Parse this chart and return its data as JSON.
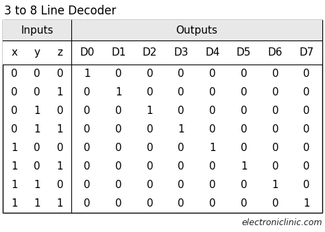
{
  "title": "3 to 8 Line Decoder",
  "header1_inputs": "Inputs",
  "header1_outputs": "Outputs",
  "col_headers": [
    "x",
    "y",
    "z",
    "D0",
    "D1",
    "D2",
    "D3",
    "D4",
    "D5",
    "D6",
    "D7"
  ],
  "rows": [
    [
      0,
      0,
      0,
      1,
      0,
      0,
      0,
      0,
      0,
      0,
      0
    ],
    [
      0,
      0,
      1,
      0,
      1,
      0,
      0,
      0,
      0,
      0,
      0
    ],
    [
      0,
      1,
      0,
      0,
      0,
      1,
      0,
      0,
      0,
      0,
      0
    ],
    [
      0,
      1,
      1,
      0,
      0,
      0,
      1,
      0,
      0,
      0,
      0
    ],
    [
      1,
      0,
      0,
      0,
      0,
      0,
      0,
      1,
      0,
      0,
      0
    ],
    [
      1,
      0,
      1,
      0,
      0,
      0,
      0,
      0,
      1,
      0,
      0
    ],
    [
      1,
      1,
      0,
      0,
      0,
      0,
      0,
      0,
      0,
      1,
      0
    ],
    [
      1,
      1,
      1,
      0,
      0,
      0,
      0,
      0,
      0,
      0,
      1
    ]
  ],
  "watermark": "electroniclinic.com",
  "bg_color": "#ffffff",
  "title_fontsize": 12,
  "header_fontsize": 11,
  "col_header_fontsize": 11,
  "cell_fontsize": 11,
  "watermark_fontsize": 9
}
